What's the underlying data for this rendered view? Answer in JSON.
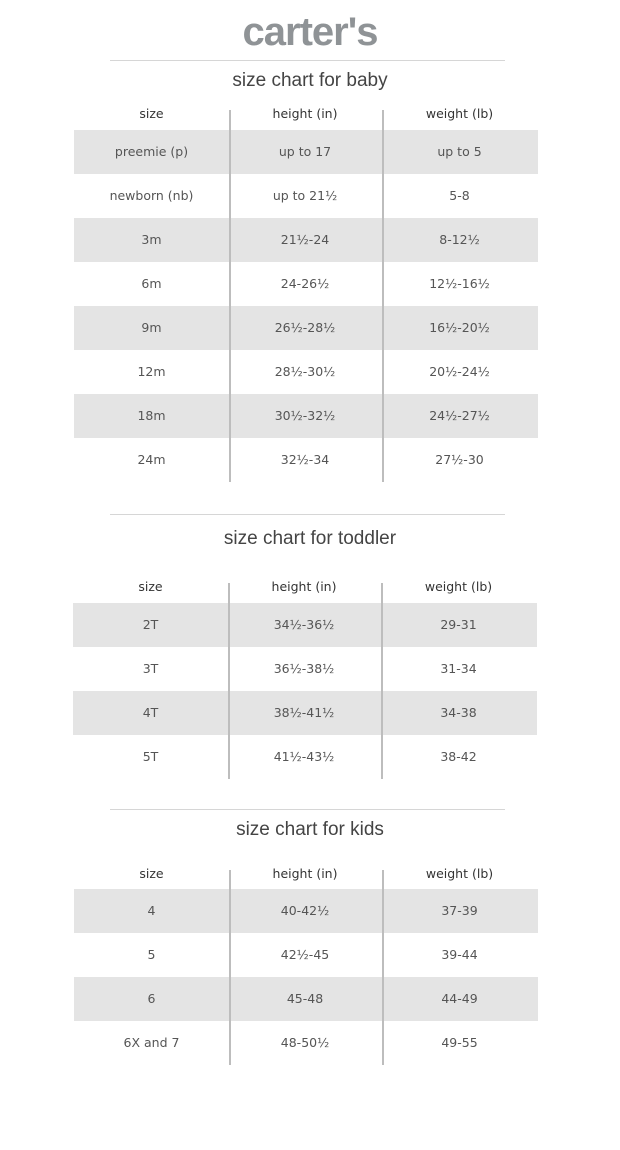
{
  "brand": {
    "logo_text": "carter's"
  },
  "columns": [
    "size",
    "height (in)",
    "weight (lb)"
  ],
  "sections": [
    {
      "title": "size chart for baby",
      "rows": [
        [
          "preemie (p)",
          "up to 17",
          "up to 5"
        ],
        [
          "newborn (nb)",
          "up to 21½",
          "5-8"
        ],
        [
          "3m",
          "21½-24",
          "8-12½"
        ],
        [
          "6m",
          "24-26½",
          "12½-16½"
        ],
        [
          "9m",
          "26½-28½",
          "16½-20½"
        ],
        [
          "12m",
          "28½-30½",
          "20½-24½"
        ],
        [
          "18m",
          "30½-32½",
          "24½-27½"
        ],
        [
          "24m",
          "32½-34",
          "27½-30"
        ]
      ]
    },
    {
      "title": "size chart for toddler",
      "rows": [
        [
          "2T",
          "34½-36½",
          "29-31"
        ],
        [
          "3T",
          "36½-38½",
          "31-34"
        ],
        [
          "4T",
          "38½-41½",
          "34-38"
        ],
        [
          "5T",
          "41½-43½",
          "38-42"
        ]
      ]
    },
    {
      "title": "size chart for kids",
      "rows": [
        [
          "4",
          "40-42½",
          "37-39"
        ],
        [
          "5",
          "42½-45",
          "39-44"
        ],
        [
          "6",
          "45-48",
          "44-49"
        ],
        [
          "6X and 7",
          "48-50½",
          "49-55"
        ]
      ]
    }
  ]
}
